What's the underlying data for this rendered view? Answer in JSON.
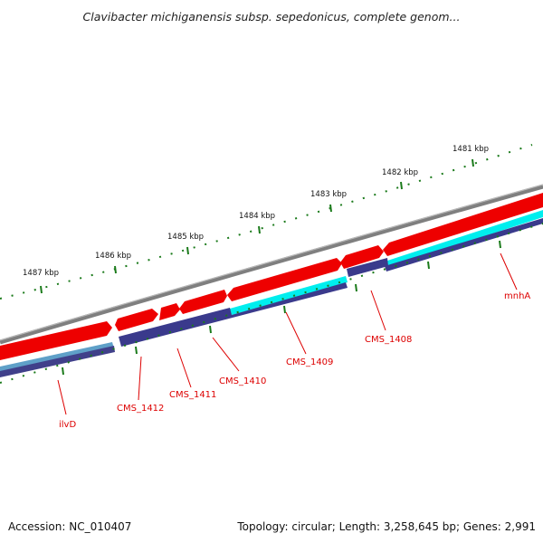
{
  "title": "Clavibacter michiganensis subsp. sepedonicus, complete genom...",
  "footer": {
    "accession": "Accession: NC_010407",
    "summary": "Topology: circular; Length: 3,258,645 bp; Genes: 2,991"
  },
  "colors": {
    "backbone": "#808080",
    "forward_cds": "#ee0000",
    "orf": "#00eeee",
    "reverse_cds": "#3a3a8c",
    "tick": "#1a7a1a",
    "gene_label": "#dd0000",
    "callout_line": "#dd0000"
  },
  "kbp_labels": [
    "1481 kbp",
    "1482 kbp",
    "1483 kbp",
    "1484 kbp",
    "1485 kbp",
    "1486 kbp",
    "1487 kbp"
  ],
  "gene_labels": [
    "mnhA",
    "CMS_1408",
    "CMS_1409",
    "CMS_1410",
    "CMS_1411",
    "CMS_1412",
    "ilvD"
  ]
}
